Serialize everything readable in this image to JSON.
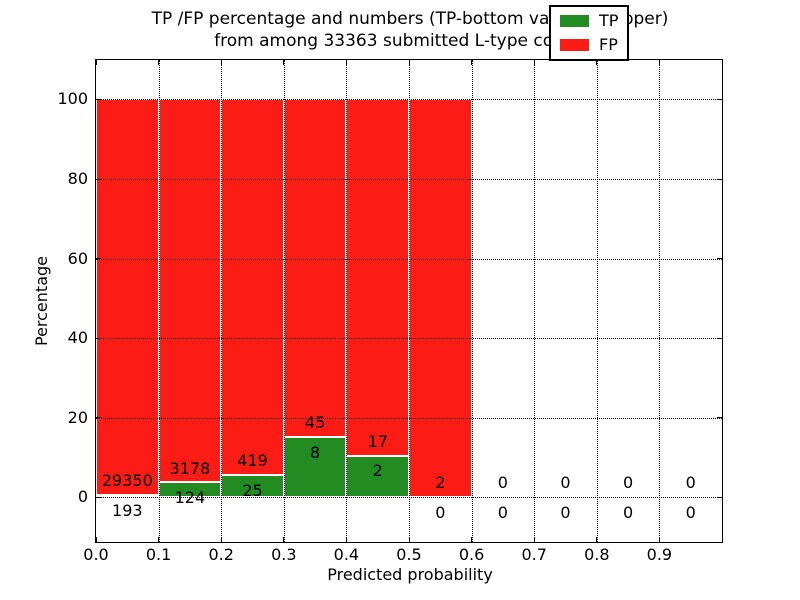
{
  "figure": {
    "title_line1": "TP /FP percentage and numbers (TP-bottom value, FP-upper)",
    "title_line2": "from among 33363 submitted L-type contacts",
    "background_color": "#ffffff"
  },
  "chart_data": {
    "type": "bar",
    "stacked": true,
    "title": "TP /FP percentage and numbers (TP-bottom value, FP-upper) from among 33363 submitted L-type contacts",
    "xlabel": "Predicted probability",
    "ylabel": "Percentage",
    "total_contacts": 33363,
    "xlim": [
      0.0,
      1.0
    ],
    "ylim": [
      -11.2,
      109.9
    ],
    "x_tick_values": [
      0.0,
      0.1,
      0.2,
      0.3,
      0.4,
      0.5,
      0.6,
      0.7,
      0.8,
      0.9
    ],
    "x_tick_labels": [
      "0.0",
      "0.1",
      "0.2",
      "0.3",
      "0.4",
      "0.5",
      "0.6",
      "0.7",
      "0.8",
      "0.9"
    ],
    "y_tick_values": [
      0,
      20,
      40,
      60,
      80,
      100
    ],
    "y_tick_labels": [
      "0",
      "20",
      "40",
      "60",
      "80",
      "100"
    ],
    "grid_style": "dotted",
    "bar_edge_color": "#ffffff",
    "bin_starts": [
      0.0,
      0.1,
      0.2,
      0.3,
      0.4,
      0.5,
      0.6,
      0.7,
      0.8,
      0.9
    ],
    "bin_width": 0.1,
    "series": [
      {
        "name": "TP",
        "color": "#228b22",
        "counts": [
          193,
          124,
          25,
          8,
          2,
          0,
          0,
          0,
          0,
          0
        ]
      },
      {
        "name": "FP",
        "color": "#fb1d15",
        "counts": [
          29350,
          3178,
          419,
          45,
          17,
          2,
          0,
          0,
          0,
          0
        ]
      }
    ],
    "bar_unit": "percent of bin total (TP+FP stacked to 100%)",
    "legend": {
      "position": "upper right",
      "entries": [
        {
          "label": "TP",
          "color": "#228b22"
        },
        {
          "label": "FP",
          "color": "#fb1d15"
        }
      ]
    }
  }
}
